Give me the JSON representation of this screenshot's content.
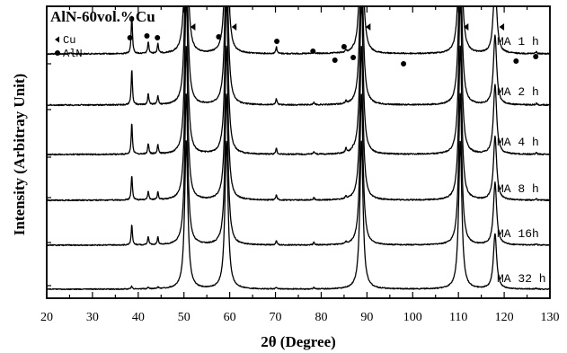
{
  "chart_data": {
    "type": "line",
    "title": "AlN-60vol.%Cu",
    "xlabel": "2θ (Degree)",
    "ylabel": "Intensity (Arbitray Unit)",
    "xlim": [
      20,
      130
    ],
    "x_ticks": [
      20,
      25,
      30,
      35,
      40,
      45,
      50,
      55,
      60,
      65,
      70,
      75,
      80,
      85,
      90,
      95,
      100,
      105,
      110,
      115,
      120,
      125,
      130
    ],
    "x_tick_labels": [
      "20",
      "30",
      "40",
      "50",
      "60",
      "70",
      "80",
      "90",
      "100",
      "110",
      "120",
      "130"
    ],
    "y_tick_labels_shown": false,
    "grid": false,
    "legend": {
      "placement": "top-left",
      "entries": [
        {
          "symbol": "triangle-left",
          "label": "Cu"
        },
        {
          "symbol": "circle",
          "label": "AlN"
        }
      ]
    },
    "peak_markers": [
      {
        "phase": "AlN",
        "two_theta": 38.2,
        "symbol": "circle"
      },
      {
        "phase": "AlN",
        "two_theta": 41.9,
        "symbol": "circle"
      },
      {
        "phase": "AlN",
        "two_theta": 44.2,
        "symbol": "circle"
      },
      {
        "phase": "Cu",
        "two_theta": 52.0,
        "symbol": "triangle-left"
      },
      {
        "phase": "AlN",
        "two_theta": 57.6,
        "symbol": "circle"
      },
      {
        "phase": "Cu",
        "two_theta": 61.0,
        "symbol": "triangle-left"
      },
      {
        "phase": "AlN",
        "two_theta": 70.3,
        "symbol": "circle"
      },
      {
        "phase": "AlN",
        "two_theta": 78.2,
        "symbol": "circle"
      },
      {
        "phase": "AlN",
        "two_theta": 83.0,
        "symbol": "circle"
      },
      {
        "phase": "AlN",
        "two_theta": 85.0,
        "symbol": "circle"
      },
      {
        "phase": "AlN",
        "two_theta": 87.0,
        "symbol": "circle"
      },
      {
        "phase": "Cu",
        "two_theta": 90.3,
        "symbol": "triangle-left"
      },
      {
        "phase": "AlN",
        "two_theta": 98.0,
        "symbol": "circle"
      },
      {
        "phase": "Cu",
        "two_theta": 111.7,
        "symbol": "triangle-left"
      },
      {
        "phase": "Cu",
        "two_theta": 119.5,
        "symbol": "triangle-left"
      },
      {
        "phase": "AlN",
        "two_theta": 122.6,
        "symbol": "circle"
      },
      {
        "phase": "AlN",
        "two_theta": 126.9,
        "symbol": "circle"
      }
    ],
    "series": [
      {
        "name": "MA 1 h",
        "peaks": [
          {
            "two_theta": 25.3,
            "intensity": 0.04
          },
          {
            "two_theta": 38.6,
            "intensity": 2.0
          },
          {
            "two_theta": 42.2,
            "intensity": 0.6
          },
          {
            "two_theta": 44.3,
            "intensity": 0.5
          },
          {
            "two_theta": 50.5,
            "intensity": 8.0
          },
          {
            "two_theta": 59.3,
            "intensity": 8.0
          },
          {
            "two_theta": 70.2,
            "intensity": 0.35
          },
          {
            "two_theta": 78.4,
            "intensity": 0.15
          },
          {
            "two_theta": 83.1,
            "intensity": 0.03
          },
          {
            "two_theta": 85.4,
            "intensity": 0.1
          },
          {
            "two_theta": 87.0,
            "intensity": 0.03
          },
          {
            "two_theta": 88.8,
            "intensity": 8.0
          },
          {
            "two_theta": 110.4,
            "intensity": 8.0
          },
          {
            "two_theta": 118.0,
            "intensity": 4.0
          },
          {
            "two_theta": 127.0,
            "intensity": 0.1
          }
        ]
      },
      {
        "name": "MA 2 h",
        "peaks": [
          {
            "two_theta": 38.6,
            "intensity": 1.8
          },
          {
            "two_theta": 42.2,
            "intensity": 0.55
          },
          {
            "two_theta": 44.3,
            "intensity": 0.45
          },
          {
            "two_theta": 50.5,
            "intensity": 8.0
          },
          {
            "two_theta": 59.3,
            "intensity": 8.0
          },
          {
            "two_theta": 70.2,
            "intensity": 0.3
          },
          {
            "two_theta": 78.4,
            "intensity": 0.15
          },
          {
            "two_theta": 85.4,
            "intensity": 0.12
          },
          {
            "two_theta": 88.8,
            "intensity": 8.0
          },
          {
            "two_theta": 110.4,
            "intensity": 8.0
          },
          {
            "two_theta": 118.0,
            "intensity": 3.5
          },
          {
            "two_theta": 127.0,
            "intensity": 0.08
          }
        ]
      },
      {
        "name": "MA 4 h",
        "peaks": [
          {
            "two_theta": 38.6,
            "intensity": 1.6
          },
          {
            "two_theta": 42.2,
            "intensity": 0.55
          },
          {
            "two_theta": 44.3,
            "intensity": 0.45
          },
          {
            "two_theta": 50.5,
            "intensity": 8.0
          },
          {
            "two_theta": 59.3,
            "intensity": 8.0
          },
          {
            "two_theta": 70.2,
            "intensity": 0.3
          },
          {
            "two_theta": 78.4,
            "intensity": 0.15
          },
          {
            "two_theta": 85.4,
            "intensity": 0.25
          },
          {
            "two_theta": 87.0,
            "intensity": 0.08
          },
          {
            "two_theta": 88.8,
            "intensity": 8.0
          },
          {
            "two_theta": 110.4,
            "intensity": 8.0
          },
          {
            "two_theta": 118.0,
            "intensity": 3.5
          },
          {
            "two_theta": 127.0,
            "intensity": 0.08
          }
        ]
      },
      {
        "name": "MA 8 h",
        "peaks": [
          {
            "two_theta": 38.6,
            "intensity": 1.3
          },
          {
            "two_theta": 42.2,
            "intensity": 0.45
          },
          {
            "two_theta": 44.3,
            "intensity": 0.4
          },
          {
            "two_theta": 50.5,
            "intensity": 8.0
          },
          {
            "two_theta": 59.3,
            "intensity": 8.0
          },
          {
            "two_theta": 70.2,
            "intensity": 0.28
          },
          {
            "two_theta": 78.4,
            "intensity": 0.14
          },
          {
            "two_theta": 85.4,
            "intensity": 0.12
          },
          {
            "two_theta": 88.8,
            "intensity": 8.0
          },
          {
            "two_theta": 110.4,
            "intensity": 8.0
          },
          {
            "two_theta": 118.0,
            "intensity": 3.3
          },
          {
            "two_theta": 127.0,
            "intensity": 0.07
          }
        ]
      },
      {
        "name": "MA 16h",
        "peaks": [
          {
            "two_theta": 38.6,
            "intensity": 1.1
          },
          {
            "two_theta": 42.2,
            "intensity": 0.45
          },
          {
            "two_theta": 44.3,
            "intensity": 0.4
          },
          {
            "two_theta": 50.5,
            "intensity": 8.0
          },
          {
            "two_theta": 59.3,
            "intensity": 8.0
          },
          {
            "two_theta": 70.2,
            "intensity": 0.25
          },
          {
            "two_theta": 78.4,
            "intensity": 0.14
          },
          {
            "two_theta": 85.4,
            "intensity": 0.1
          },
          {
            "two_theta": 88.8,
            "intensity": 8.0
          },
          {
            "two_theta": 110.4,
            "intensity": 8.0
          },
          {
            "two_theta": 118.0,
            "intensity": 3.3
          },
          {
            "two_theta": 127.0,
            "intensity": 0.07
          }
        ]
      },
      {
        "name": "MA 32h",
        "peaks": [
          {
            "two_theta": 38.6,
            "intensity": 0.15
          },
          {
            "two_theta": 42.2,
            "intensity": 0.1
          },
          {
            "two_theta": 44.3,
            "intensity": 0.1
          },
          {
            "two_theta": 50.5,
            "intensity": 8.0
          },
          {
            "two_theta": 59.3,
            "intensity": 8.0
          },
          {
            "two_theta": 70.2,
            "intensity": 0.1
          },
          {
            "two_theta": 78.4,
            "intensity": 0.08
          },
          {
            "two_theta": 88.8,
            "intensity": 8.0
          },
          {
            "two_theta": 110.4,
            "intensity": 8.0
          },
          {
            "two_theta": 118.0,
            "intensity": 3.0
          },
          {
            "two_theta": 127.0,
            "intensity": 0.05
          }
        ]
      }
    ],
    "series_labels": [
      "MA 1 h",
      "MA 2 h",
      "MA 4 h",
      "MA 8 h",
      "MA 16h",
      "MA 32 h"
    ]
  }
}
